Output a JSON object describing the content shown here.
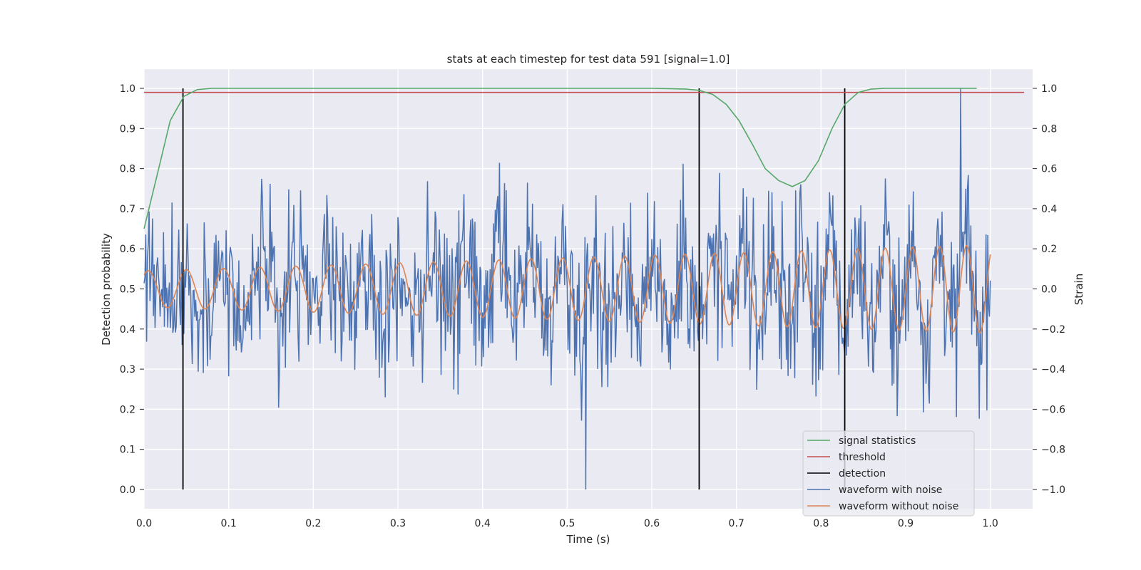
{
  "chart_data": {
    "type": "line",
    "title": "stats at each timestep for test data 591 [signal=1.0]",
    "xlabel": "Time (s)",
    "ylabel": "Detection probability",
    "y2label": "Strain",
    "xlim": [
      0.0,
      1.05
    ],
    "ylim": [
      -0.048,
      1.048
    ],
    "y2lim": [
      -1.096,
      1.096
    ],
    "xticks": [
      0.0,
      0.1,
      0.2,
      0.3,
      0.4,
      0.5,
      0.6,
      0.7,
      0.8,
      0.9,
      1.0
    ],
    "yticks": [
      0.0,
      0.1,
      0.2,
      0.3,
      0.4,
      0.5,
      0.6,
      0.7,
      0.8,
      0.9,
      1.0
    ],
    "y2ticks": [
      -1.0,
      -0.8,
      -0.6,
      -0.4,
      -0.2,
      0.0,
      0.2,
      0.4,
      0.6,
      0.8,
      1.0
    ],
    "xtick_labels": [
      "0.0",
      "0.1",
      "0.2",
      "0.3",
      "0.4",
      "0.5",
      "0.6",
      "0.7",
      "0.8",
      "0.9",
      "1.0"
    ],
    "ytick_labels": [
      "0.0",
      "0.1",
      "0.2",
      "0.3",
      "0.4",
      "0.5",
      "0.6",
      "0.7",
      "0.8",
      "0.9",
      "1.0"
    ],
    "y2tick_labels": [
      "−1.0",
      "−0.8",
      "−0.6",
      "−0.4",
      "−0.2",
      "0.0",
      "0.2",
      "0.4",
      "0.6",
      "0.8",
      "1.0"
    ],
    "grid": true,
    "legend_position": "lower-right",
    "series": [
      {
        "name": "signal statistics",
        "axis": "left",
        "color": "#55a868",
        "x": [
          0.0,
          0.015,
          0.031,
          0.047,
          0.063,
          0.08,
          0.2,
          0.4,
          0.6,
          0.625,
          0.641,
          0.656,
          0.672,
          0.688,
          0.703,
          0.719,
          0.734,
          0.75,
          0.766,
          0.781,
          0.797,
          0.813,
          0.828,
          0.844,
          0.859,
          0.875,
          0.9,
          0.95,
          0.984
        ],
        "y": [
          0.65,
          0.78,
          0.92,
          0.98,
          0.997,
          1.0,
          1.0,
          1.0,
          1.0,
          0.999,
          0.998,
          0.995,
          0.985,
          0.96,
          0.92,
          0.86,
          0.8,
          0.77,
          0.755,
          0.77,
          0.82,
          0.9,
          0.96,
          0.99,
          0.998,
          1.0,
          1.0,
          1.0,
          1.0
        ]
      },
      {
        "name": "threshold",
        "axis": "left",
        "color": "#c44e52",
        "x": [
          0.0,
          1.04
        ],
        "y": [
          0.99,
          0.99
        ]
      },
      {
        "name": "detection",
        "axis": "left",
        "color": "#000000",
        "type": "vlines",
        "x": [
          0.046,
          0.656,
          0.828
        ],
        "y_range": [
          0.0,
          1.0
        ]
      },
      {
        "name": "waveform with noise",
        "axis": "right",
        "color": "#4c72b0",
        "x_range": [
          0.0,
          1.0
        ],
        "n_points": 1000,
        "note": "noisy strain series; envelope roughly ±0.7, min ≈ −1.0 near t=0.52, max ≈ 1.0 near t=0.965"
      },
      {
        "name": "waveform without noise",
        "axis": "right",
        "color": "#dd8452",
        "x_range": [
          0.0,
          1.0
        ],
        "amplitude_range": [
          0.09,
          0.22
        ],
        "frequency_range_hz": [
          22,
          32
        ]
      }
    ]
  }
}
